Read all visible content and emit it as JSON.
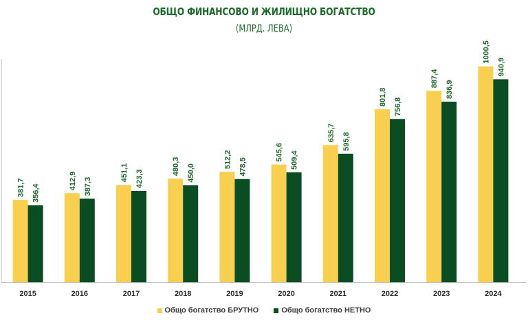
{
  "chart_data": {
    "type": "bar",
    "title": "ОБЩО ФИНАНСОВО И ЖИЛИЩНО БОГАТСТВО",
    "subtitle": "(МЛРД. ЛЕВА)",
    "categories": [
      "2015",
      "2016",
      "2017",
      "2018",
      "2019",
      "2020",
      "2021",
      "2022",
      "2023",
      "2024"
    ],
    "series": [
      {
        "name": "Общо богатство БРУТНО",
        "color": "#f9cf4f",
        "values": [
          381.7,
          412.9,
          451.1,
          480.3,
          512.2,
          545.6,
          635.7,
          801.8,
          887.4,
          1000.5
        ],
        "labels": [
          "381,7",
          "412,9",
          "451,1",
          "480,3",
          "512,2",
          "545,6",
          "635,7",
          "801,8",
          "887,4",
          "1000,5"
        ]
      },
      {
        "name": "Общо богатство НЕТНО",
        "color": "#0a4d22",
        "values": [
          356.4,
          387.3,
          423.3,
          450.0,
          478.5,
          509.4,
          595.8,
          756.8,
          836.9,
          940.9
        ],
        "labels": [
          "356,4",
          "387,3",
          "423,3",
          "450,0",
          "478,5",
          "509,4",
          "595,8",
          "756,8",
          "836,9",
          "940,9"
        ]
      }
    ],
    "ylim": [
      0,
      1200
    ],
    "grid": false,
    "legend_position": "bottom",
    "label_color": "#1d6b2c",
    "axis_color": "#bfbfbf"
  }
}
